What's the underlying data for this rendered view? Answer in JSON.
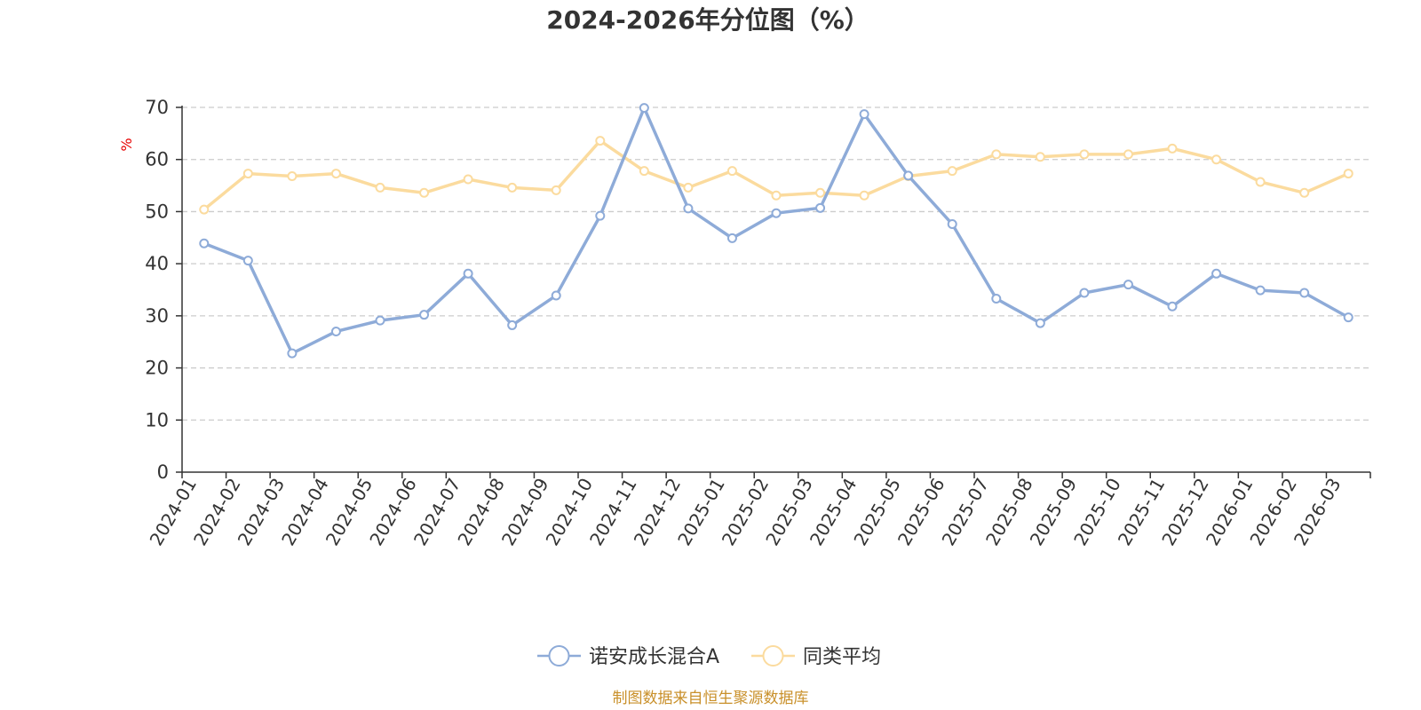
{
  "chart_data": {
    "type": "line",
    "title": "2024-2026年分位图（%）",
    "ylabel": "%",
    "ylim": [
      0,
      70
    ],
    "yticks": [
      0,
      10,
      20,
      30,
      40,
      50,
      60,
      70
    ],
    "grid": true,
    "legend_position": "bottom",
    "categories": [
      "2024-01",
      "2024-02",
      "2024-03",
      "2024-04",
      "2024-05",
      "2024-06",
      "2024-07",
      "2024-08",
      "2024-09",
      "2024-10",
      "2024-11",
      "2024-12",
      "2025-01",
      "2025-02",
      "2025-03",
      "2025-04",
      "2025-05",
      "2025-06",
      "2025-07",
      "2025-08",
      "2025-09",
      "2025-10",
      "2025-11",
      "2025-12",
      "2026-01",
      "2026-02",
      "2026-03"
    ],
    "series": [
      {
        "name": "诺安成长混合A",
        "color": "#8eabd8",
        "values": [
          43.9,
          40.6,
          22.8,
          27.0,
          29.1,
          30.2,
          38.1,
          28.2,
          33.9,
          49.2,
          69.9,
          50.6,
          44.9,
          49.7,
          50.7,
          68.7,
          56.9,
          47.6,
          33.3,
          28.6,
          34.4,
          36.0,
          31.8,
          38.1,
          34.9,
          34.4,
          29.7
        ]
      },
      {
        "name": "同类平均",
        "color": "#fbdb9e",
        "values": [
          50.4,
          57.3,
          56.8,
          57.3,
          54.6,
          53.6,
          56.2,
          54.6,
          54.1,
          63.6,
          57.8,
          54.6,
          57.8,
          53.1,
          53.6,
          53.1,
          56.8,
          57.8,
          61.0,
          60.5,
          61.0,
          61.0,
          62.1,
          60.0,
          55.7,
          53.6,
          57.3
        ]
      }
    ]
  },
  "source_text": "制图数据来自恒生聚源数据库"
}
